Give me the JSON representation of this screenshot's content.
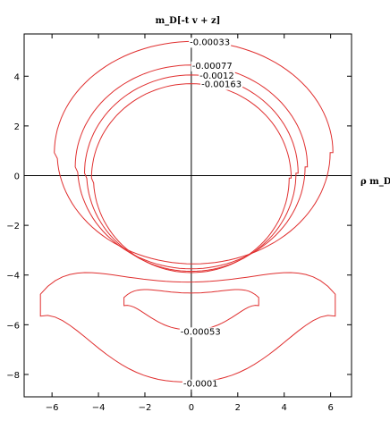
{
  "chart_data": {
    "type": "contour",
    "title": "m_D[-t v + z]",
    "xlabel": "ρ m_D",
    "ylabel": "",
    "xlim": [
      -7.2,
      6.9
    ],
    "ylim": [
      -8.9,
      5.7
    ],
    "grid": false,
    "legend": "none",
    "xticks": [
      "-6",
      "-4",
      "-2",
      "0",
      "2",
      "4",
      "6"
    ],
    "yticks": [
      "-8",
      "-6",
      "-4",
      "-2",
      "0",
      "2",
      "4"
    ],
    "line_color": "#e03030",
    "contours": [
      {
        "level": "-0.00033",
        "kind": "ellipse",
        "xmin": -5.9,
        "xmax": 6.1,
        "ytop": 5.4,
        "ybottom": -3.55,
        "label_at": [
          0.8,
          5.4
        ]
      },
      {
        "level": "-0.00077",
        "kind": "ellipse",
        "xmin": -5.0,
        "xmax": 5.0,
        "ytop": 4.45,
        "ybottom": -3.75,
        "label_at": [
          0.9,
          4.45
        ]
      },
      {
        "level": "-0.0012",
        "kind": "ellipse",
        "xmin": -4.6,
        "xmax": 4.6,
        "ytop": 4.05,
        "ybottom": -3.85,
        "label_at": [
          1.1,
          4.05
        ]
      },
      {
        "level": "-0.00163",
        "kind": "ellipse",
        "xmin": -4.3,
        "xmax": 4.3,
        "ytop": 3.7,
        "ybottom": -3.9,
        "label_at": [
          1.3,
          3.7
        ]
      },
      {
        "level": "-0.00053",
        "kind": "crescent",
        "xmin": -2.9,
        "xmax": 2.9,
        "ytop": -4.4,
        "ybottom": -6.2,
        "label_at": [
          0.4,
          -6.25
        ]
      },
      {
        "level": "-0.0001",
        "kind": "crescent",
        "xmin": -6.5,
        "xmax": 6.2,
        "ytop": -3.4,
        "ybottom": -8.3,
        "label_at": [
          0.4,
          -8.35
        ]
      }
    ]
  }
}
